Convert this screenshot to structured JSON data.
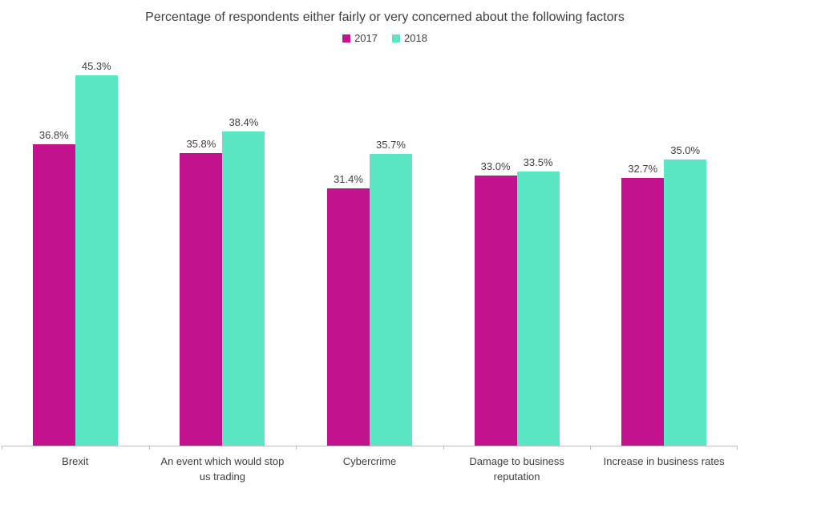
{
  "chart_data": {
    "type": "bar",
    "title": "Percentage of respondents either fairly or very concerned about the following factors",
    "categories": [
      "Brexit",
      "An event which would stop us trading",
      "Cybercrime",
      "Damage to business reputation",
      "Increase in business rates"
    ],
    "series": [
      {
        "name": "2017",
        "color": "#c2128c",
        "values": [
          36.8,
          35.8,
          31.4,
          33.0,
          32.7
        ]
      },
      {
        "name": "2018",
        "color": "#5be7c4",
        "values": [
          45.3,
          38.4,
          35.7,
          33.5,
          35.0
        ]
      }
    ],
    "data_labels": [
      "36.8%",
      "35.8%",
      "31.4%",
      "33.0%",
      "32.7%",
      "45.3%",
      "38.4%",
      "35.7%",
      "33.5%",
      "35.0%"
    ],
    "value_suffix": "%",
    "ylabel": "",
    "xlabel": "",
    "ylim": [
      0,
      48
    ],
    "grid": false,
    "legend_position": "top",
    "axis_color": "#bfbfbf",
    "text_color": "#404040"
  }
}
